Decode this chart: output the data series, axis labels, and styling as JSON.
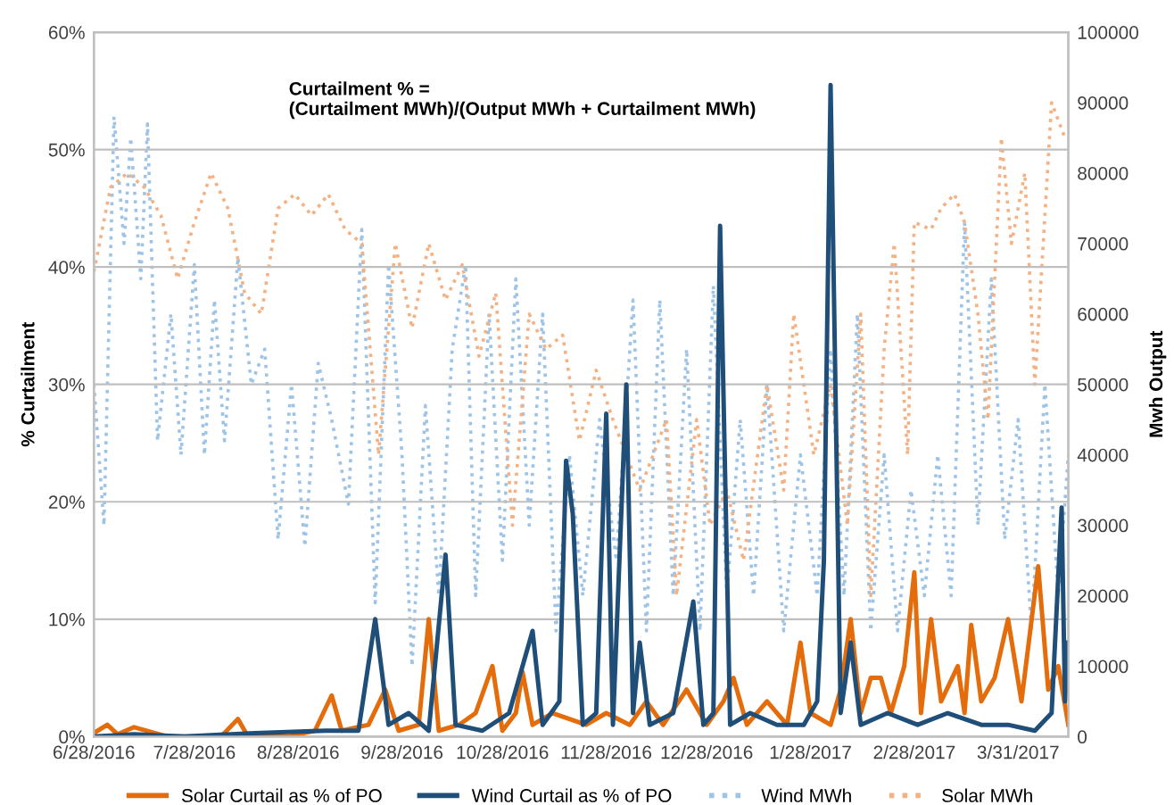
{
  "chart_data": {
    "type": "line",
    "ylabel": "% Curtailment",
    "y2label": "Mwh Output",
    "annotations": [
      "Curtailment % =\n(Curtailment MWh)/(Output MWh + Curtailment MWh)"
    ],
    "xlim": [
      "2016-06-28",
      "2017-04-15"
    ],
    "xticks": [
      {
        "value": "2016-06-28",
        "label": "6/28/2016"
      },
      {
        "value": "2016-07-28",
        "label": "7/28/2016"
      },
      {
        "value": "2016-08-28",
        "label": "8/28/2016"
      },
      {
        "value": "2016-09-28",
        "label": "9/28/2016"
      },
      {
        "value": "2016-10-28",
        "label": "10/28/2016"
      },
      {
        "value": "2016-11-28",
        "label": "11/28/2016"
      },
      {
        "value": "2016-12-28",
        "label": "12/28/2016"
      },
      {
        "value": "2017-01-28",
        "label": "1/28/2017"
      },
      {
        "value": "2017-02-28",
        "label": "2/28/2017"
      },
      {
        "value": "2017-03-31",
        "label": "3/31/2017"
      }
    ],
    "ylim": [
      0,
      60
    ],
    "yticks": [
      {
        "value": 0,
        "label": "0%"
      },
      {
        "value": 10,
        "label": "10%"
      },
      {
        "value": 20,
        "label": "20%"
      },
      {
        "value": 30,
        "label": "30%"
      },
      {
        "value": 40,
        "label": "40%"
      },
      {
        "value": 50,
        "label": "50%"
      },
      {
        "value": 60,
        "label": "60%"
      }
    ],
    "y2lim": [
      0,
      100000
    ],
    "y2ticks": [
      0,
      10000,
      20000,
      30000,
      40000,
      50000,
      60000,
      70000,
      80000,
      90000,
      100000
    ],
    "grid": "y",
    "legend": "bottom",
    "marker": "none",
    "series": [
      {
        "name": "Solar Curtail as % of PO",
        "color": "#e46c0a",
        "line_style": "solid",
        "x": [
          "2016-06-28",
          "2016-07-02",
          "2016-07-05",
          "2016-07-10",
          "2016-07-20",
          "2016-08-05",
          "2016-08-10",
          "2016-08-13",
          "2016-08-25",
          "2016-09-02",
          "2016-09-07",
          "2016-09-10",
          "2016-09-18",
          "2016-09-23",
          "2016-09-27",
          "2016-10-03",
          "2016-10-06",
          "2016-10-09",
          "2016-10-15",
          "2016-10-20",
          "2016-10-25",
          "2016-10-28",
          "2016-11-01",
          "2016-11-03",
          "2016-11-06",
          "2016-11-12",
          "2016-11-22",
          "2016-11-28",
          "2016-12-05",
          "2016-12-10",
          "2016-12-15",
          "2016-12-22",
          "2016-12-28",
          "2017-01-02",
          "2017-01-05",
          "2017-01-09",
          "2017-01-15",
          "2017-01-21",
          "2017-01-25",
          "2017-01-28",
          "2017-02-03",
          "2017-02-06",
          "2017-02-09",
          "2017-02-12",
          "2017-02-15",
          "2017-02-18",
          "2017-02-21",
          "2017-02-25",
          "2017-02-28",
          "2017-03-02",
          "2017-03-05",
          "2017-03-08",
          "2017-03-13",
          "2017-03-15",
          "2017-03-17",
          "2017-03-20",
          "2017-03-24",
          "2017-03-28",
          "2017-04-01",
          "2017-04-06",
          "2017-04-09",
          "2017-04-12",
          "2017-04-15"
        ],
        "values": [
          0.3,
          1,
          0.2,
          0.8,
          0,
          0,
          1.5,
          0,
          0,
          0.5,
          3.5,
          0.5,
          1,
          4,
          0.5,
          1,
          10,
          0.5,
          1,
          2,
          6,
          0.5,
          2,
          5.5,
          1,
          2,
          1,
          2,
          1,
          3,
          1,
          4,
          1,
          3,
          5,
          1,
          3,
          1,
          8,
          2,
          1,
          4,
          10,
          2,
          5,
          5,
          2,
          6,
          14,
          2,
          10,
          3,
          6,
          2,
          9.5,
          3,
          5,
          10,
          3,
          14.5,
          4,
          6,
          1
        ]
      },
      {
        "name": "Wind Curtail as % of PO",
        "color": "#1f4e79",
        "line_style": "solid",
        "x": [
          "2016-06-28",
          "2016-07-10",
          "2016-07-25",
          "2016-08-15",
          "2016-09-05",
          "2016-09-15",
          "2016-09-20",
          "2016-09-24",
          "2016-09-30",
          "2016-10-06",
          "2016-10-11",
          "2016-10-14",
          "2016-10-22",
          "2016-10-30",
          "2016-11-06",
          "2016-11-09",
          "2016-11-14",
          "2016-11-16",
          "2016-11-18",
          "2016-11-21",
          "2016-11-25",
          "2016-11-28",
          "2016-11-30",
          "2016-12-04",
          "2016-12-06",
          "2016-12-08",
          "2016-12-11",
          "2016-12-18",
          "2016-12-24",
          "2016-12-27",
          "2016-12-30",
          "2017-01-01",
          "2017-01-04",
          "2017-01-10",
          "2017-01-18",
          "2017-01-26",
          "2017-01-30",
          "2017-02-01",
          "2017-02-03",
          "2017-02-06",
          "2017-02-09",
          "2017-02-12",
          "2017-02-20",
          "2017-03-01",
          "2017-03-10",
          "2017-03-20",
          "2017-03-28",
          "2017-04-05",
          "2017-04-10",
          "2017-04-13",
          "2017-04-14",
          "2017-04-15"
        ],
        "values": [
          0,
          0.2,
          0,
          0.3,
          0.5,
          0.5,
          10,
          1,
          2,
          0.5,
          15.5,
          1,
          0.5,
          2,
          9,
          1,
          3,
          23.5,
          19,
          1,
          2,
          27.5,
          1,
          30,
          2,
          8,
          1,
          2,
          11.5,
          1,
          2,
          43.5,
          1,
          2,
          1,
          1,
          3,
          15,
          55.5,
          2,
          8,
          1,
          2,
          1,
          2,
          1,
          1,
          0.5,
          2,
          19.5,
          3,
          8
        ]
      },
      {
        "name": "Wind MWh",
        "color": "#9dc3e6",
        "line_style": "dotted",
        "axis": "y2",
        "x": [
          "2016-06-28",
          "2016-07-01",
          "2016-07-04",
          "2016-07-07",
          "2016-07-09",
          "2016-07-12",
          "2016-07-14",
          "2016-07-17",
          "2016-07-21",
          "2016-07-24",
          "2016-07-28",
          "2016-07-31",
          "2016-08-03",
          "2016-08-06",
          "2016-08-10",
          "2016-08-14",
          "2016-08-18",
          "2016-08-22",
          "2016-08-26",
          "2016-08-30",
          "2016-09-03",
          "2016-09-07",
          "2016-09-12",
          "2016-09-16",
          "2016-09-20",
          "2016-09-24",
          "2016-09-28",
          "2016-10-01",
          "2016-10-05",
          "2016-10-09",
          "2016-10-13",
          "2016-10-17",
          "2016-10-20",
          "2016-10-24",
          "2016-10-28",
          "2016-11-01",
          "2016-11-05",
          "2016-11-09",
          "2016-11-13",
          "2016-11-17",
          "2016-11-21",
          "2016-11-26",
          "2016-12-01",
          "2016-12-06",
          "2016-12-10",
          "2016-12-14",
          "2016-12-18",
          "2016-12-22",
          "2016-12-26",
          "2016-12-30",
          "2017-01-03",
          "2017-01-07",
          "2017-01-11",
          "2017-01-15",
          "2017-01-20",
          "2017-01-25",
          "2017-01-30",
          "2017-02-03",
          "2017-02-07",
          "2017-02-11",
          "2017-02-15",
          "2017-02-19",
          "2017-02-23",
          "2017-02-27",
          "2017-03-03",
          "2017-03-07",
          "2017-03-11",
          "2017-03-15",
          "2017-03-19",
          "2017-03-23",
          "2017-03-27",
          "2017-03-31",
          "2017-04-04",
          "2017-04-08",
          "2017-04-12",
          "2017-04-15"
        ],
        "values": [
          50000,
          30000,
          88000,
          70000,
          85000,
          65000,
          87000,
          42000,
          60000,
          40000,
          67000,
          40000,
          62000,
          42000,
          68000,
          50000,
          55000,
          28000,
          50000,
          27000,
          53000,
          45000,
          33000,
          72000,
          19000,
          67000,
          40000,
          10000,
          47000,
          20000,
          55000,
          67000,
          20000,
          60000,
          25000,
          65000,
          30000,
          60000,
          15000,
          40000,
          20000,
          45000,
          25000,
          62000,
          15000,
          62000,
          20000,
          55000,
          15000,
          64000,
          20000,
          45000,
          20000,
          50000,
          15000,
          40000,
          20000,
          55000,
          20000,
          60000,
          15000,
          40000,
          15000,
          35000,
          20000,
          40000,
          20000,
          73000,
          30000,
          65000,
          28000,
          45000,
          15000,
          50000,
          20000,
          40000
        ]
      },
      {
        "name": "Solar MWh",
        "color": "#f4b183",
        "line_style": "dotted",
        "axis": "y2",
        "x": [
          "2016-06-28",
          "2016-07-03",
          "2016-07-08",
          "2016-07-13",
          "2016-07-18",
          "2016-07-23",
          "2016-07-28",
          "2016-08-02",
          "2016-08-07",
          "2016-08-12",
          "2016-08-17",
          "2016-08-22",
          "2016-08-27",
          "2016-09-01",
          "2016-09-06",
          "2016-09-11",
          "2016-09-16",
          "2016-09-21",
          "2016-09-26",
          "2016-10-01",
          "2016-10-06",
          "2016-10-11",
          "2016-10-16",
          "2016-10-21",
          "2016-10-26",
          "2016-10-31",
          "2016-11-05",
          "2016-11-10",
          "2016-11-15",
          "2016-11-20",
          "2016-11-25",
          "2016-11-30",
          "2016-12-08",
          "2016-12-16",
          "2016-12-19",
          "2016-12-25",
          "2016-12-29",
          "2017-01-03",
          "2017-01-08",
          "2017-01-15",
          "2017-01-20",
          "2017-01-23",
          "2017-01-29",
          "2017-02-03",
          "2017-02-08",
          "2017-02-12",
          "2017-02-15",
          "2017-02-19",
          "2017-02-22",
          "2017-02-26",
          "2017-02-28",
          "2017-03-05",
          "2017-03-08",
          "2017-03-12",
          "2017-03-15",
          "2017-03-19",
          "2017-03-22",
          "2017-03-26",
          "2017-03-29",
          "2017-04-02",
          "2017-04-05",
          "2017-04-10",
          "2017-04-14"
        ],
        "values": [
          66000,
          78000,
          80000,
          78000,
          74000,
          65000,
          73000,
          80000,
          75000,
          63000,
          60000,
          75000,
          77000,
          74000,
          77000,
          72000,
          70000,
          40000,
          70000,
          58000,
          70000,
          62000,
          67000,
          54000,
          63000,
          30000,
          60000,
          55000,
          57000,
          42000,
          52000,
          45000,
          35000,
          45000,
          20000,
          45000,
          30000,
          35000,
          25000,
          50000,
          35000,
          60000,
          40000,
          50000,
          30000,
          60000,
          20000,
          55000,
          70000,
          40000,
          73000,
          72000,
          75000,
          77000,
          73000,
          60000,
          45000,
          85000,
          70000,
          80000,
          50000,
          90000,
          85000
        ]
      }
    ]
  }
}
